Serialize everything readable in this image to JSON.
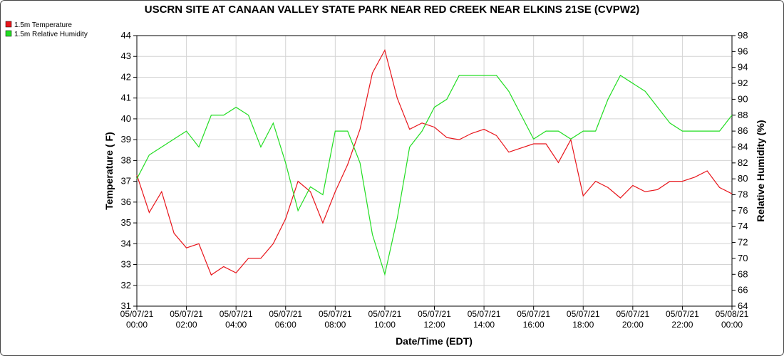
{
  "chart_data": {
    "type": "line",
    "title": "USCRN SITE AT CANAAN VALLEY STATE PARK NEAR RED CREEK NEAR ELKINS 21SE (CVPW2)",
    "x_label": "Date/Time (EDT)",
    "y_label": "Temperature ( F)",
    "y2_label": "Relative Humidity (%)",
    "x": [
      0,
      0.5,
      1,
      1.5,
      2,
      2.5,
      3,
      3.5,
      4,
      4.5,
      5,
      5.5,
      6,
      6.5,
      7,
      7.5,
      8,
      8.5,
      9,
      9.5,
      10,
      10.5,
      11,
      11.5,
      12,
      12.5,
      13,
      13.5,
      14,
      14.5,
      15,
      15.5,
      16,
      16.5,
      17,
      17.5,
      18,
      18.5,
      19,
      19.5,
      20,
      20.5,
      21,
      21.5,
      22,
      22.5,
      23,
      23.5,
      24
    ],
    "series": [
      {
        "name": "1.5m Temperature",
        "color": "#e8151b",
        "values": [
          37.3,
          35.5,
          36.5,
          34.5,
          33.8,
          34,
          32.5,
          32.9,
          32.6,
          33.3,
          33.3,
          34,
          35.2,
          37,
          36.5,
          35,
          36.5,
          37.8,
          39.5,
          42.2,
          43.3,
          41,
          39.5,
          39.8,
          39.6,
          39.1,
          39,
          39.3,
          39.5,
          39.2,
          38.4,
          38.6,
          38.8,
          38.8,
          37.9,
          39,
          36.3,
          37,
          36.7,
          36.2,
          36.8,
          36.5,
          36.6,
          37,
          37,
          37.2,
          37.5,
          36.7,
          36.4
        ]
      },
      {
        "name": "1.5m Relative Humidity",
        "color": "#22dd22",
        "axis": "y2",
        "values": [
          80,
          83,
          84,
          85,
          86,
          84,
          88,
          88,
          89,
          88,
          84,
          87,
          82,
          76,
          79,
          78,
          86,
          86,
          82,
          73,
          68,
          75,
          84,
          86,
          89,
          90,
          93,
          93,
          93,
          93,
          91,
          88,
          85,
          86,
          86,
          85,
          86,
          86,
          90,
          93,
          92,
          91,
          89,
          87,
          86,
          86,
          86,
          86,
          88
        ]
      }
    ],
    "xlim": [
      0,
      24
    ],
    "xticks": [
      {
        "value": 0,
        "label": "05/07/21 00:00"
      },
      {
        "value": 2,
        "label": "05/07/21 02:00"
      },
      {
        "value": 4,
        "label": "05/07/21 04:00"
      },
      {
        "value": 6,
        "label": "05/07/21 06:00"
      },
      {
        "value": 8,
        "label": "05/07/21 08:00"
      },
      {
        "value": 10,
        "label": "05/07/21 10:00"
      },
      {
        "value": 12,
        "label": "05/07/21 12:00"
      },
      {
        "value": 14,
        "label": "05/07/21 14:00"
      },
      {
        "value": 16,
        "label": "05/07/21 16:00"
      },
      {
        "value": 18,
        "label": "05/07/21 18:00"
      },
      {
        "value": 20,
        "label": "05/07/21 20:00"
      },
      {
        "value": 22,
        "label": "05/07/21 22:00"
      },
      {
        "value": 24,
        "label": "05/08/21 00:00"
      }
    ],
    "ylim": [
      31,
      44
    ],
    "yticks": [
      31,
      32,
      33,
      34,
      35,
      36,
      37,
      38,
      39,
      40,
      41,
      42,
      43,
      44
    ],
    "y2lim": [
      64,
      98
    ],
    "y2ticks": [
      64,
      66,
      68,
      70,
      72,
      74,
      76,
      78,
      80,
      82,
      84,
      86,
      88,
      90,
      92,
      94,
      96,
      98
    ],
    "grid": true
  }
}
